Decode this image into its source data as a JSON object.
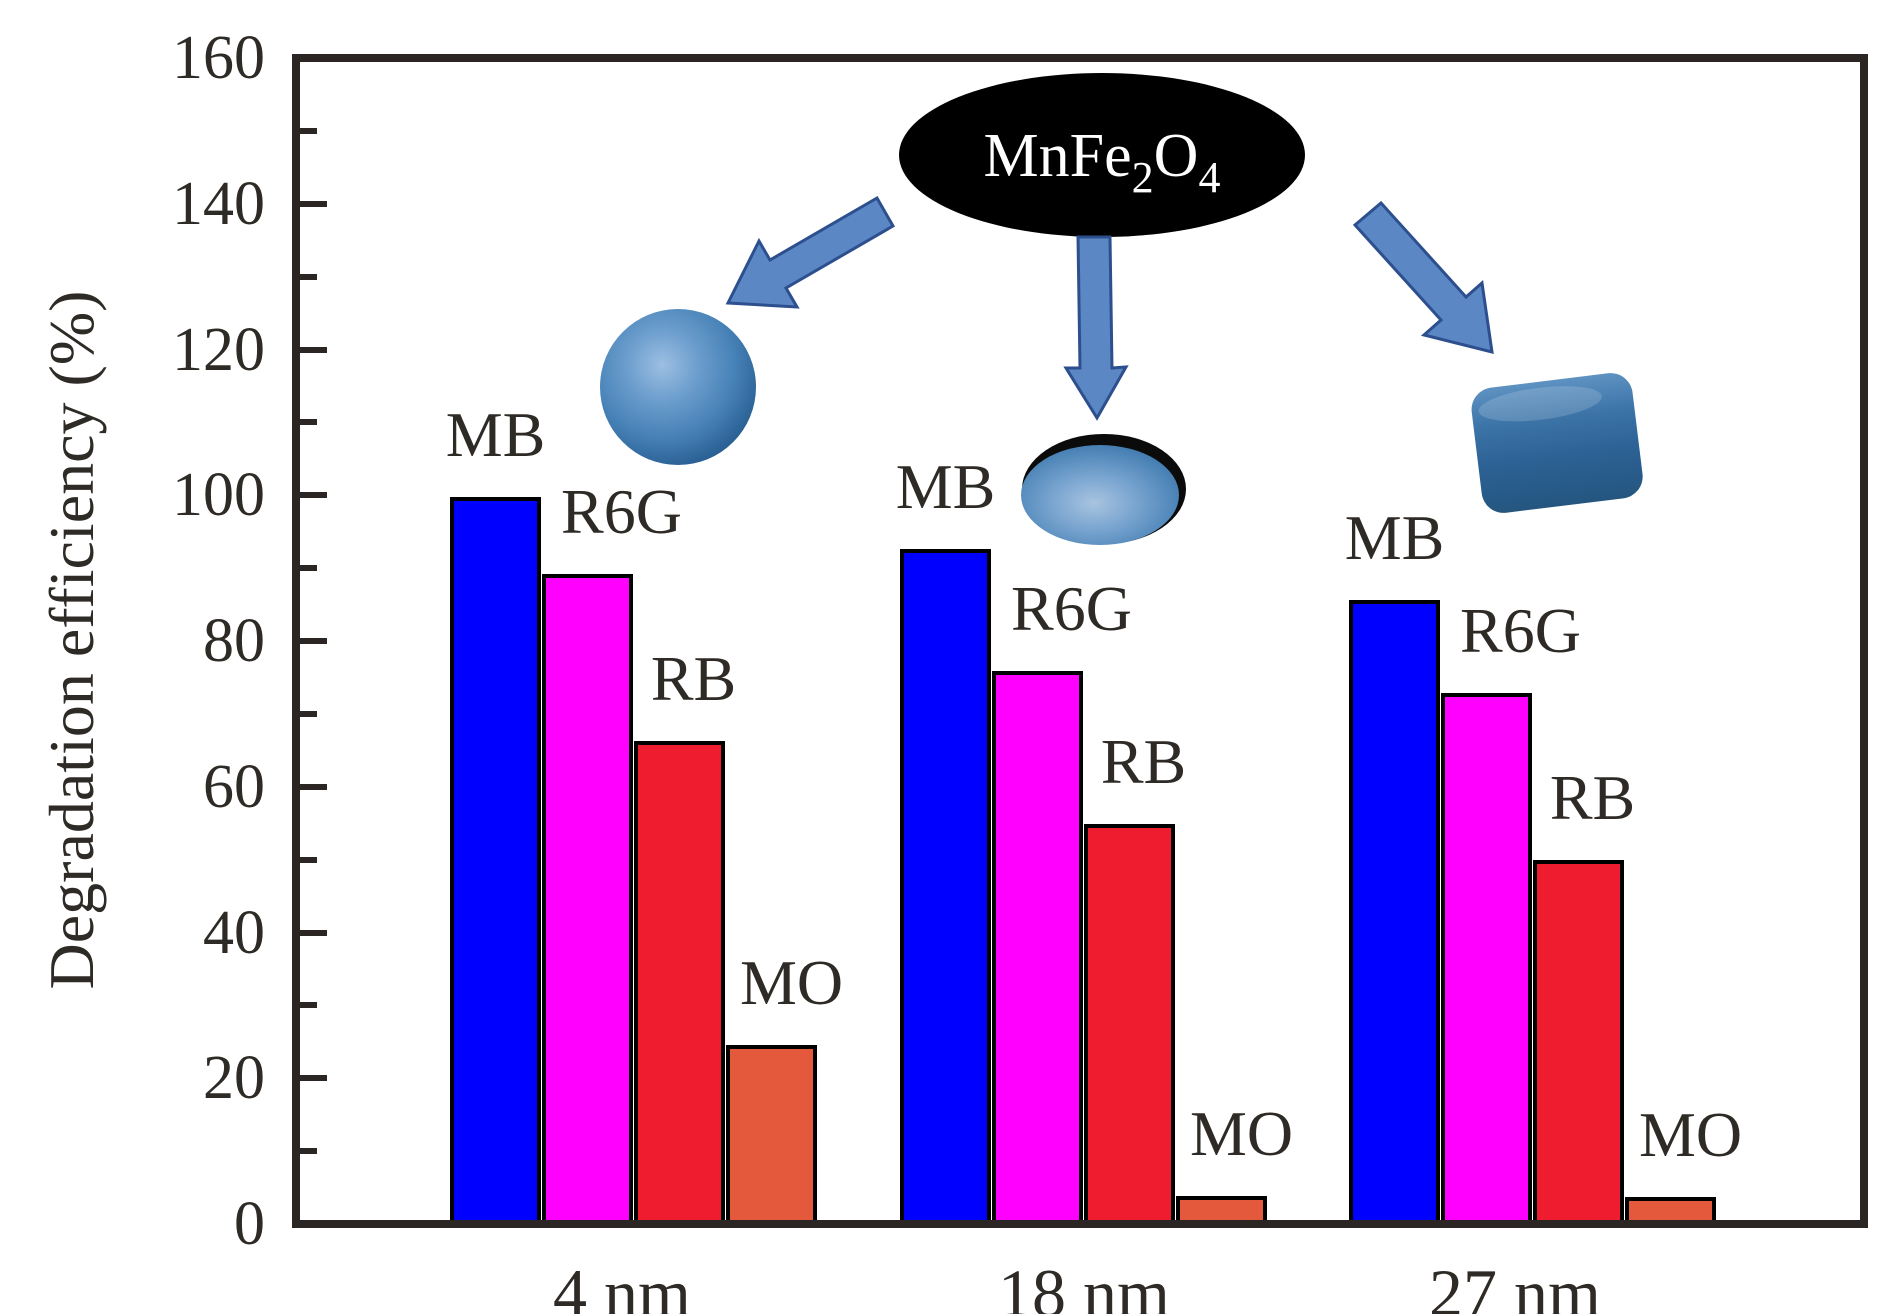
{
  "figure": {
    "y_axis": {
      "label": "Degradation efficiency (%)",
      "tick_values": [
        0,
        20,
        40,
        60,
        80,
        100,
        120,
        140,
        160
      ],
      "minor_tick_values": [
        10,
        30,
        50,
        70,
        90,
        110,
        130,
        150
      ]
    },
    "x_axis": {
      "categories": [
        "4 nm",
        "18 nm",
        "27 nm"
      ]
    },
    "annotation": {
      "full": "MnFe2O4",
      "parts": [
        "MnFe",
        "2",
        "O",
        "4"
      ],
      "ellipse_color": "#000000",
      "text_color": "#ffffff"
    },
    "shapes": [
      "sphere",
      "oblate-spheroid",
      "cube"
    ],
    "arrow_color": "#5b87c5",
    "arrow_border_color": "#2d4f8e"
  },
  "chart_data": {
    "type": "bar",
    "title": "",
    "xlabel": "",
    "ylabel": "Degradation efficiency (%)",
    "ylim": [
      0,
      160
    ],
    "ytick_step": 20,
    "grid": false,
    "legend_position": "labels above bars",
    "categories": [
      "4 nm",
      "18 nm",
      "27 nm"
    ],
    "series": [
      {
        "name": "MB",
        "color": "#0000ff",
        "values": [
          99.7,
          92.6,
          85.6
        ]
      },
      {
        "name": "R6G",
        "color": "#ff00ff",
        "values": [
          89.2,
          75.9,
          72.9
        ]
      },
      {
        "name": "RB",
        "color": "#ee1c2e",
        "values": [
          66.3,
          54.9,
          49.9
        ]
      },
      {
        "name": "MO",
        "color": "#e4593b",
        "values": [
          24.5,
          3.9,
          3.7
        ]
      }
    ],
    "annotation": "MnFe2O4 nanoparticles drawn as sphere (4 nm), oblate spheroid (18 nm) and cube (27 nm)"
  }
}
